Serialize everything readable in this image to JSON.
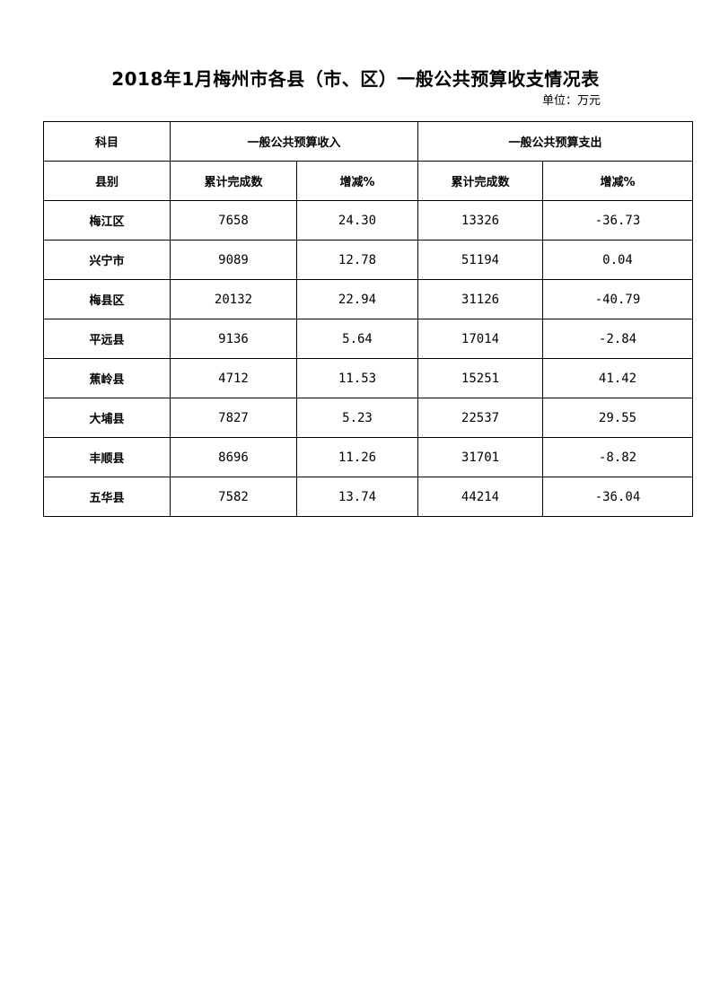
{
  "title": "2018年1月梅州市各县（市、区）一般公共预算收支情况表",
  "unit": "单位：万元",
  "header": {
    "subject": "科目",
    "income": "一般公共预算收入",
    "expense": "一般公共预算支出",
    "county": "县别",
    "income_total": "累计完成数",
    "income_change": "增减%",
    "expense_total": "累计完成数",
    "expense_change": "增减%"
  },
  "rows": [
    {
      "county": "梅江区",
      "income_total": "7658",
      "income_change": "24.30",
      "expense_total": "13326",
      "expense_change": "-36.73"
    },
    {
      "county": "兴宁市",
      "income_total": "9089",
      "income_change": "12.78",
      "expense_total": "51194",
      "expense_change": "0.04"
    },
    {
      "county": "梅县区",
      "income_total": "20132",
      "income_change": "22.94",
      "expense_total": "31126",
      "expense_change": "-40.79"
    },
    {
      "county": "平远县",
      "income_total": "9136",
      "income_change": "5.64",
      "expense_total": "17014",
      "expense_change": "-2.84"
    },
    {
      "county": "蕉岭县",
      "income_total": "4712",
      "income_change": "11.53",
      "expense_total": "15251",
      "expense_change": "41.42"
    },
    {
      "county": "大埔县",
      "income_total": "7827",
      "income_change": "5.23",
      "expense_total": "22537",
      "expense_change": "29.55"
    },
    {
      "county": "丰顺县",
      "income_total": "8696",
      "income_change": "11.26",
      "expense_total": "31701",
      "expense_change": "-8.82"
    },
    {
      "county": "五华县",
      "income_total": "7582",
      "income_change": "13.74",
      "expense_total": "44214",
      "expense_change": "-36.04"
    }
  ]
}
